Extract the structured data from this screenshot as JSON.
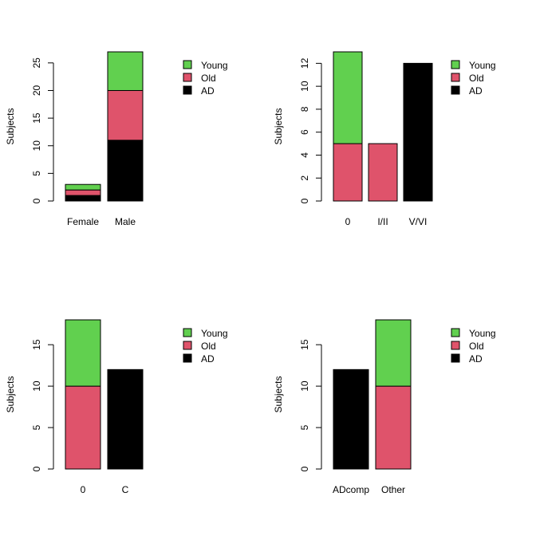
{
  "colors": {
    "Young": "#61D04F",
    "Old": "#DF536B",
    "AD": "#000000"
  },
  "chart_data": [
    {
      "type": "bar",
      "stacked": true,
      "categories": [
        "Female",
        "Male"
      ],
      "series": [
        {
          "name": "AD",
          "values": [
            1,
            11
          ]
        },
        {
          "name": "Old",
          "values": [
            1,
            9
          ]
        },
        {
          "name": "Young",
          "values": [
            1,
            7
          ]
        }
      ],
      "ylabel": "Subjects",
      "ylim": [
        0,
        27
      ],
      "yticks": [
        0,
        5,
        10,
        15,
        20,
        25
      ],
      "legend": [
        "Young",
        "Old",
        "AD"
      ],
      "legend_position": "top-right"
    },
    {
      "type": "bar",
      "stacked": true,
      "categories": [
        "0",
        "I/II",
        "V/VI"
      ],
      "series": [
        {
          "name": "AD",
          "values": [
            0,
            0,
            12
          ]
        },
        {
          "name": "Old",
          "values": [
            5,
            5,
            0
          ]
        },
        {
          "name": "Young",
          "values": [
            8,
            0,
            0
          ]
        }
      ],
      "ylabel": "Subjects",
      "ylim": [
        0,
        13
      ],
      "yticks": [
        0,
        2,
        4,
        6,
        8,
        10,
        12
      ],
      "legend": [
        "Young",
        "Old",
        "AD"
      ],
      "legend_position": "top-right"
    },
    {
      "type": "bar",
      "stacked": true,
      "categories": [
        "0",
        "C"
      ],
      "series": [
        {
          "name": "AD",
          "values": [
            0,
            12
          ]
        },
        {
          "name": "Old",
          "values": [
            10,
            0
          ]
        },
        {
          "name": "Young",
          "values": [
            8,
            0
          ]
        }
      ],
      "ylabel": "Subjects",
      "ylim": [
        0,
        18
      ],
      "yticks": [
        0,
        5,
        10,
        15
      ],
      "legend": [
        "Young",
        "Old",
        "AD"
      ],
      "legend_position": "top-right"
    },
    {
      "type": "bar",
      "stacked": true,
      "categories": [
        "ADcomp",
        "Other"
      ],
      "series": [
        {
          "name": "AD",
          "values": [
            12,
            0
          ]
        },
        {
          "name": "Old",
          "values": [
            0,
            10
          ]
        },
        {
          "name": "Young",
          "values": [
            0,
            8
          ]
        }
      ],
      "ylabel": "Subjects",
      "ylim": [
        0,
        18
      ],
      "yticks": [
        0,
        5,
        10,
        15
      ],
      "legend": [
        "Young",
        "Old",
        "AD"
      ],
      "legend_position": "top-right"
    }
  ]
}
